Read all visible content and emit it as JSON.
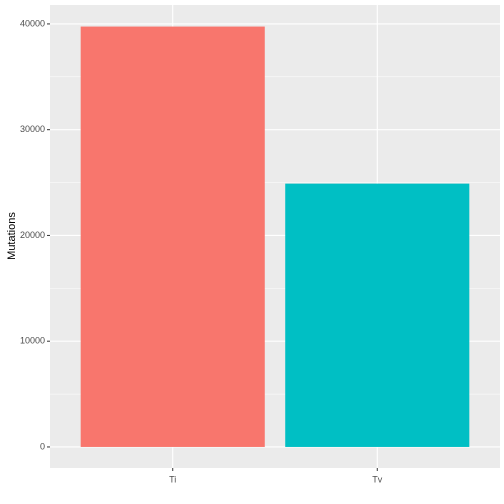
{
  "chart_data": {
    "type": "bar",
    "y_label": "Mutations",
    "categories": [
      "Ti",
      "Tv"
    ],
    "values": [
      39750,
      24900
    ],
    "colors": [
      "#F8766D",
      "#00BFC4"
    ],
    "ylim": [
      -1990,
      41790
    ],
    "yticks": [
      0,
      10000,
      20000,
      30000,
      40000
    ],
    "grid": true
  }
}
